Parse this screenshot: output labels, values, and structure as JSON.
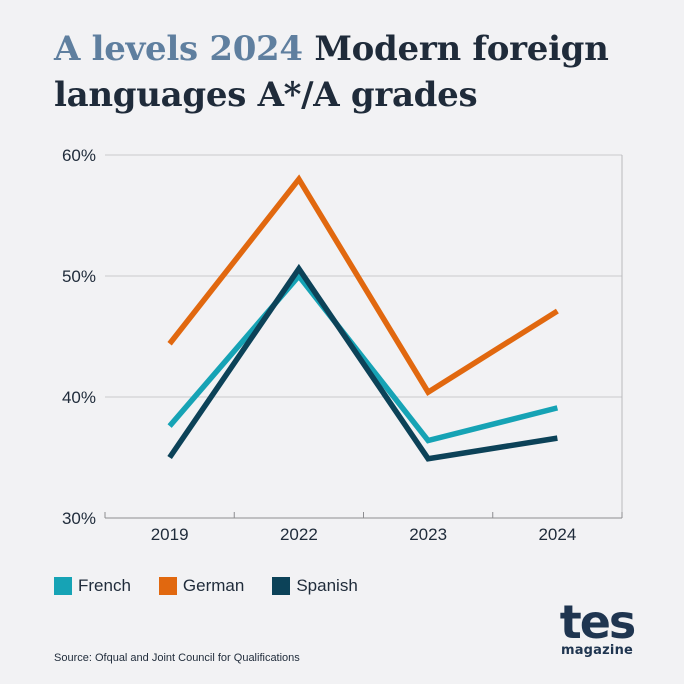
{
  "title": {
    "accent": "A levels 2024",
    "rest": "Modern foreign languages A*/A grades"
  },
  "chart_data": {
    "type": "line",
    "x": [
      "2019",
      "2022",
      "2023",
      "2024"
    ],
    "series": [
      {
        "name": "French",
        "color": "#16a3b5",
        "values": [
          37.6,
          50.0,
          36.4,
          39.1
        ]
      },
      {
        "name": "German",
        "color": "#e1680f",
        "values": [
          44.4,
          58.0,
          40.4,
          47.1
        ]
      },
      {
        "name": "Spanish",
        "color": "#0c4258",
        "values": [
          35.0,
          50.6,
          34.9,
          36.6
        ]
      }
    ],
    "yticks": [
      "30%",
      "40%",
      "50%",
      "60%"
    ],
    "ylim": [
      30,
      60
    ],
    "grid": true,
    "legend": "bottom"
  },
  "source": "Source: Ofqual and Joint Council for Qualifications",
  "logo": {
    "main": "tes",
    "sub": "magazine"
  }
}
